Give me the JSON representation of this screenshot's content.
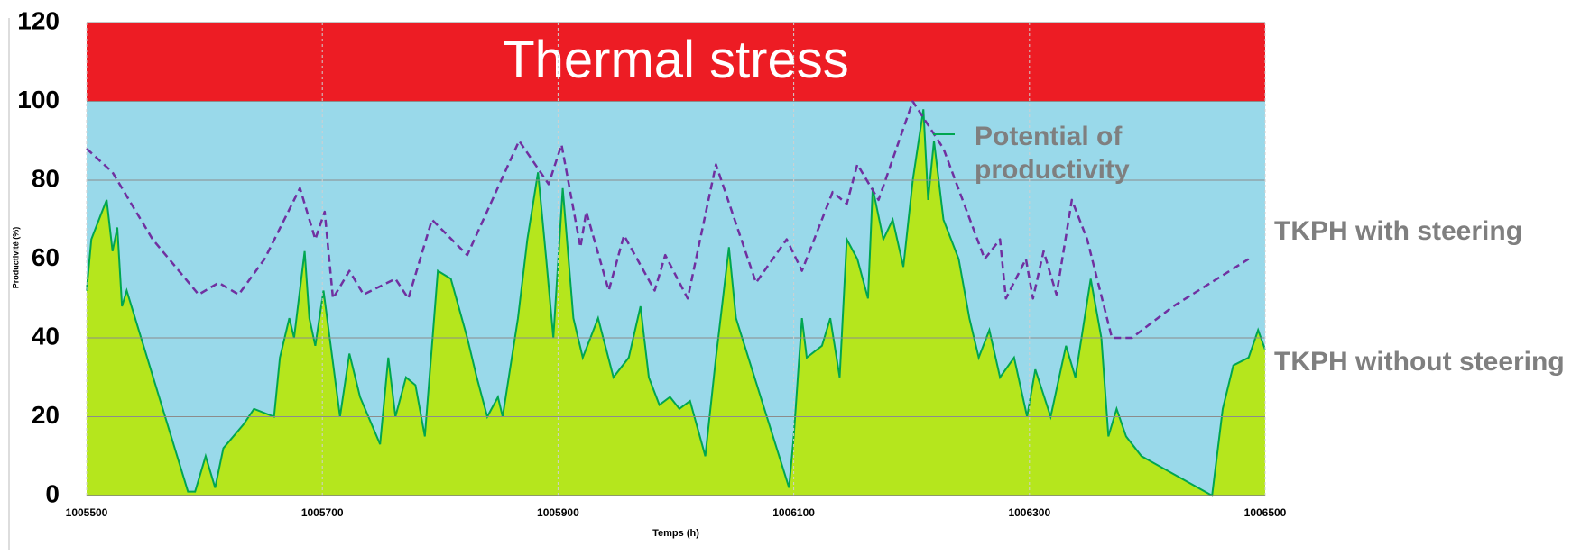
{
  "chart_data": {
    "type": "area-line",
    "xlabel": "Temps (h)",
    "ylabel": "Productivité (%)",
    "xlim": [
      1005500,
      1006500
    ],
    "xticks": [
      1005500,
      1005700,
      1005900,
      1006100,
      1006300,
      1006500
    ],
    "ylim": [
      0,
      120
    ],
    "yticks": [
      0,
      20,
      40,
      60,
      80,
      100,
      120
    ],
    "grid": true,
    "band": {
      "from": 100,
      "to": 120,
      "label": "Thermal stress",
      "color": "#ed1c24"
    },
    "background": "#99d9ea",
    "annotation": "Potential of productivity",
    "series": [
      {
        "name": "TKPH without steering",
        "style": "area",
        "color": "#00a650",
        "fill": "#b5e61d",
        "x": [
          1005500,
          1005504,
          1005513,
          1005517,
          1005522,
          1005526,
          1005530,
          1005534,
          1005586,
          1005592,
          1005601,
          1005609,
          1005616,
          1005633,
          1005642,
          1005659,
          1005664,
          1005672,
          1005676,
          1005685,
          1005689,
          1005694,
          1005701,
          1005715,
          1005723,
          1005732,
          1005749,
          1005756,
          1005762,
          1005771,
          1005779,
          1005787,
          1005798,
          1005809,
          1005823,
          1005831,
          1005840,
          1005849,
          1005853,
          1005866,
          1005874,
          1005883,
          1005890,
          1005896,
          1005904,
          1005913,
          1005921,
          1005934,
          1005947,
          1005960,
          1005970,
          1005977,
          1005986,
          1005995,
          1006003,
          1006012,
          1006025,
          1006034,
          1006045,
          1006051,
          1006096,
          1006100,
          1006107,
          1006111,
          1006124,
          1006131,
          1006139,
          1006145,
          1006154,
          1006163,
          1006167,
          1006176,
          1006184,
          1006193,
          1006201,
          1006210,
          1006214,
          1006219,
          1006227,
          1006240,
          1006249,
          1006257,
          1006266,
          1006275,
          1006287,
          1006298,
          1006305,
          1006318,
          1006331,
          1006339,
          1006352,
          1006361,
          1006367,
          1006374,
          1006382,
          1006395,
          1006455,
          1006464,
          1006473,
          1006486,
          1006494,
          1006500
        ],
        "values": [
          52,
          65,
          72,
          75,
          62,
          68,
          48,
          52,
          1,
          1,
          10,
          2,
          12,
          18,
          22,
          20,
          35,
          45,
          40,
          62,
          45,
          38,
          52,
          20,
          36,
          25,
          13,
          35,
          20,
          30,
          28,
          15,
          57,
          55,
          40,
          30,
          20,
          25,
          20,
          45,
          65,
          82,
          60,
          40,
          78,
          45,
          35,
          45,
          30,
          35,
          48,
          30,
          23,
          25,
          22,
          24,
          10,
          35,
          63,
          45,
          2,
          15,
          45,
          35,
          38,
          45,
          30,
          65,
          60,
          50,
          78,
          65,
          70,
          58,
          80,
          98,
          75,
          90,
          70,
          60,
          45,
          35,
          42,
          30,
          35,
          20,
          32,
          20,
          38,
          30,
          55,
          40,
          15,
          22,
          15,
          10,
          0,
          22,
          33,
          35,
          42,
          37
        ]
      },
      {
        "name": "TKPH with steering",
        "style": "dashed",
        "color": "#7030a0",
        "x": [
          1005500,
          1005522,
          1005556,
          1005595,
          1005612,
          1005629,
          1005651,
          1005681,
          1005694,
          1005702,
          1005709,
          1005723,
          1005735,
          1005762,
          1005773,
          1005793,
          1005823,
          1005867,
          1005892,
          1005903,
          1005919,
          1005924,
          1005943,
          1005956,
          1005982,
          1005991,
          1006010,
          1006034,
          1006068,
          1006094,
          1006107,
          1006133,
          1006145,
          1006154,
          1006172,
          1006201,
          1006227,
          1006262,
          1006275,
          1006280,
          1006297,
          1006303,
          1006312,
          1006323,
          1006336,
          1006349,
          1006370,
          1006387,
          1006422,
          1006486
        ],
        "values": [
          88,
          82,
          65,
          51,
          54,
          51,
          60,
          78,
          65,
          72,
          50,
          57,
          51,
          55,
          50,
          70,
          61,
          90,
          79,
          89,
          63,
          72,
          52,
          66,
          52,
          61,
          50,
          84,
          54,
          65,
          57,
          77,
          74,
          84,
          75,
          100,
          88,
          60,
          65,
          50,
          60,
          50,
          62,
          51,
          75,
          65,
          40,
          40,
          48,
          60
        ]
      }
    ]
  }
}
